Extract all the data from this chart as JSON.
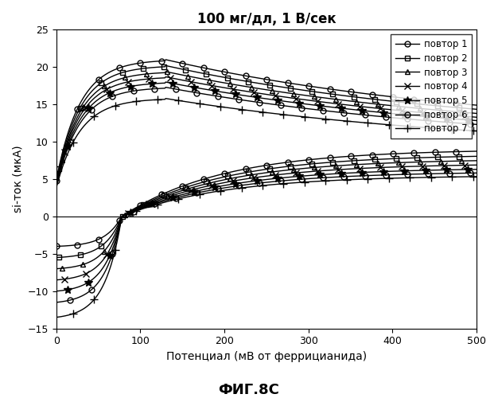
{
  "title": "100 мг/дл, 1 В/сек",
  "xlabel": "Потенциал (мВ от феррицианида)",
  "ylabel": "si-ток (мкА)",
  "caption": "ФИГ.8С",
  "xlim": [
    0,
    500
  ],
  "ylim": [
    -15,
    25
  ],
  "xticks": [
    0,
    100,
    200,
    300,
    400,
    500
  ],
  "yticks": [
    -15,
    -10,
    -5,
    0,
    5,
    10,
    15,
    20,
    25
  ],
  "legend_labels": [
    "повтор 1",
    "повтор 2",
    "повтор 3",
    "повтор 4",
    "повтор 5",
    "повтор 6",
    "повтор 7"
  ],
  "markers": [
    "o",
    "s",
    "^",
    "x",
    "*",
    "o",
    "+"
  ],
  "color": "#000000",
  "background": "#ffffff",
  "upper_peaks": [
    21.0,
    20.2,
    19.4,
    18.7,
    18.0,
    17.3,
    15.8
  ],
  "upper_starts": [
    4.8,
    4.6,
    4.4,
    4.3,
    4.1,
    4.0,
    3.8
  ],
  "upper_ends": [
    11.2,
    10.8,
    10.4,
    10.0,
    9.7,
    9.3,
    8.8
  ],
  "lower_starts": [
    -4.0,
    -5.5,
    -7.0,
    -8.5,
    -10.0,
    -11.5,
    -13.5
  ],
  "lower_ends": [
    9.0,
    8.3,
    7.7,
    7.1,
    6.5,
    6.0,
    5.5
  ]
}
